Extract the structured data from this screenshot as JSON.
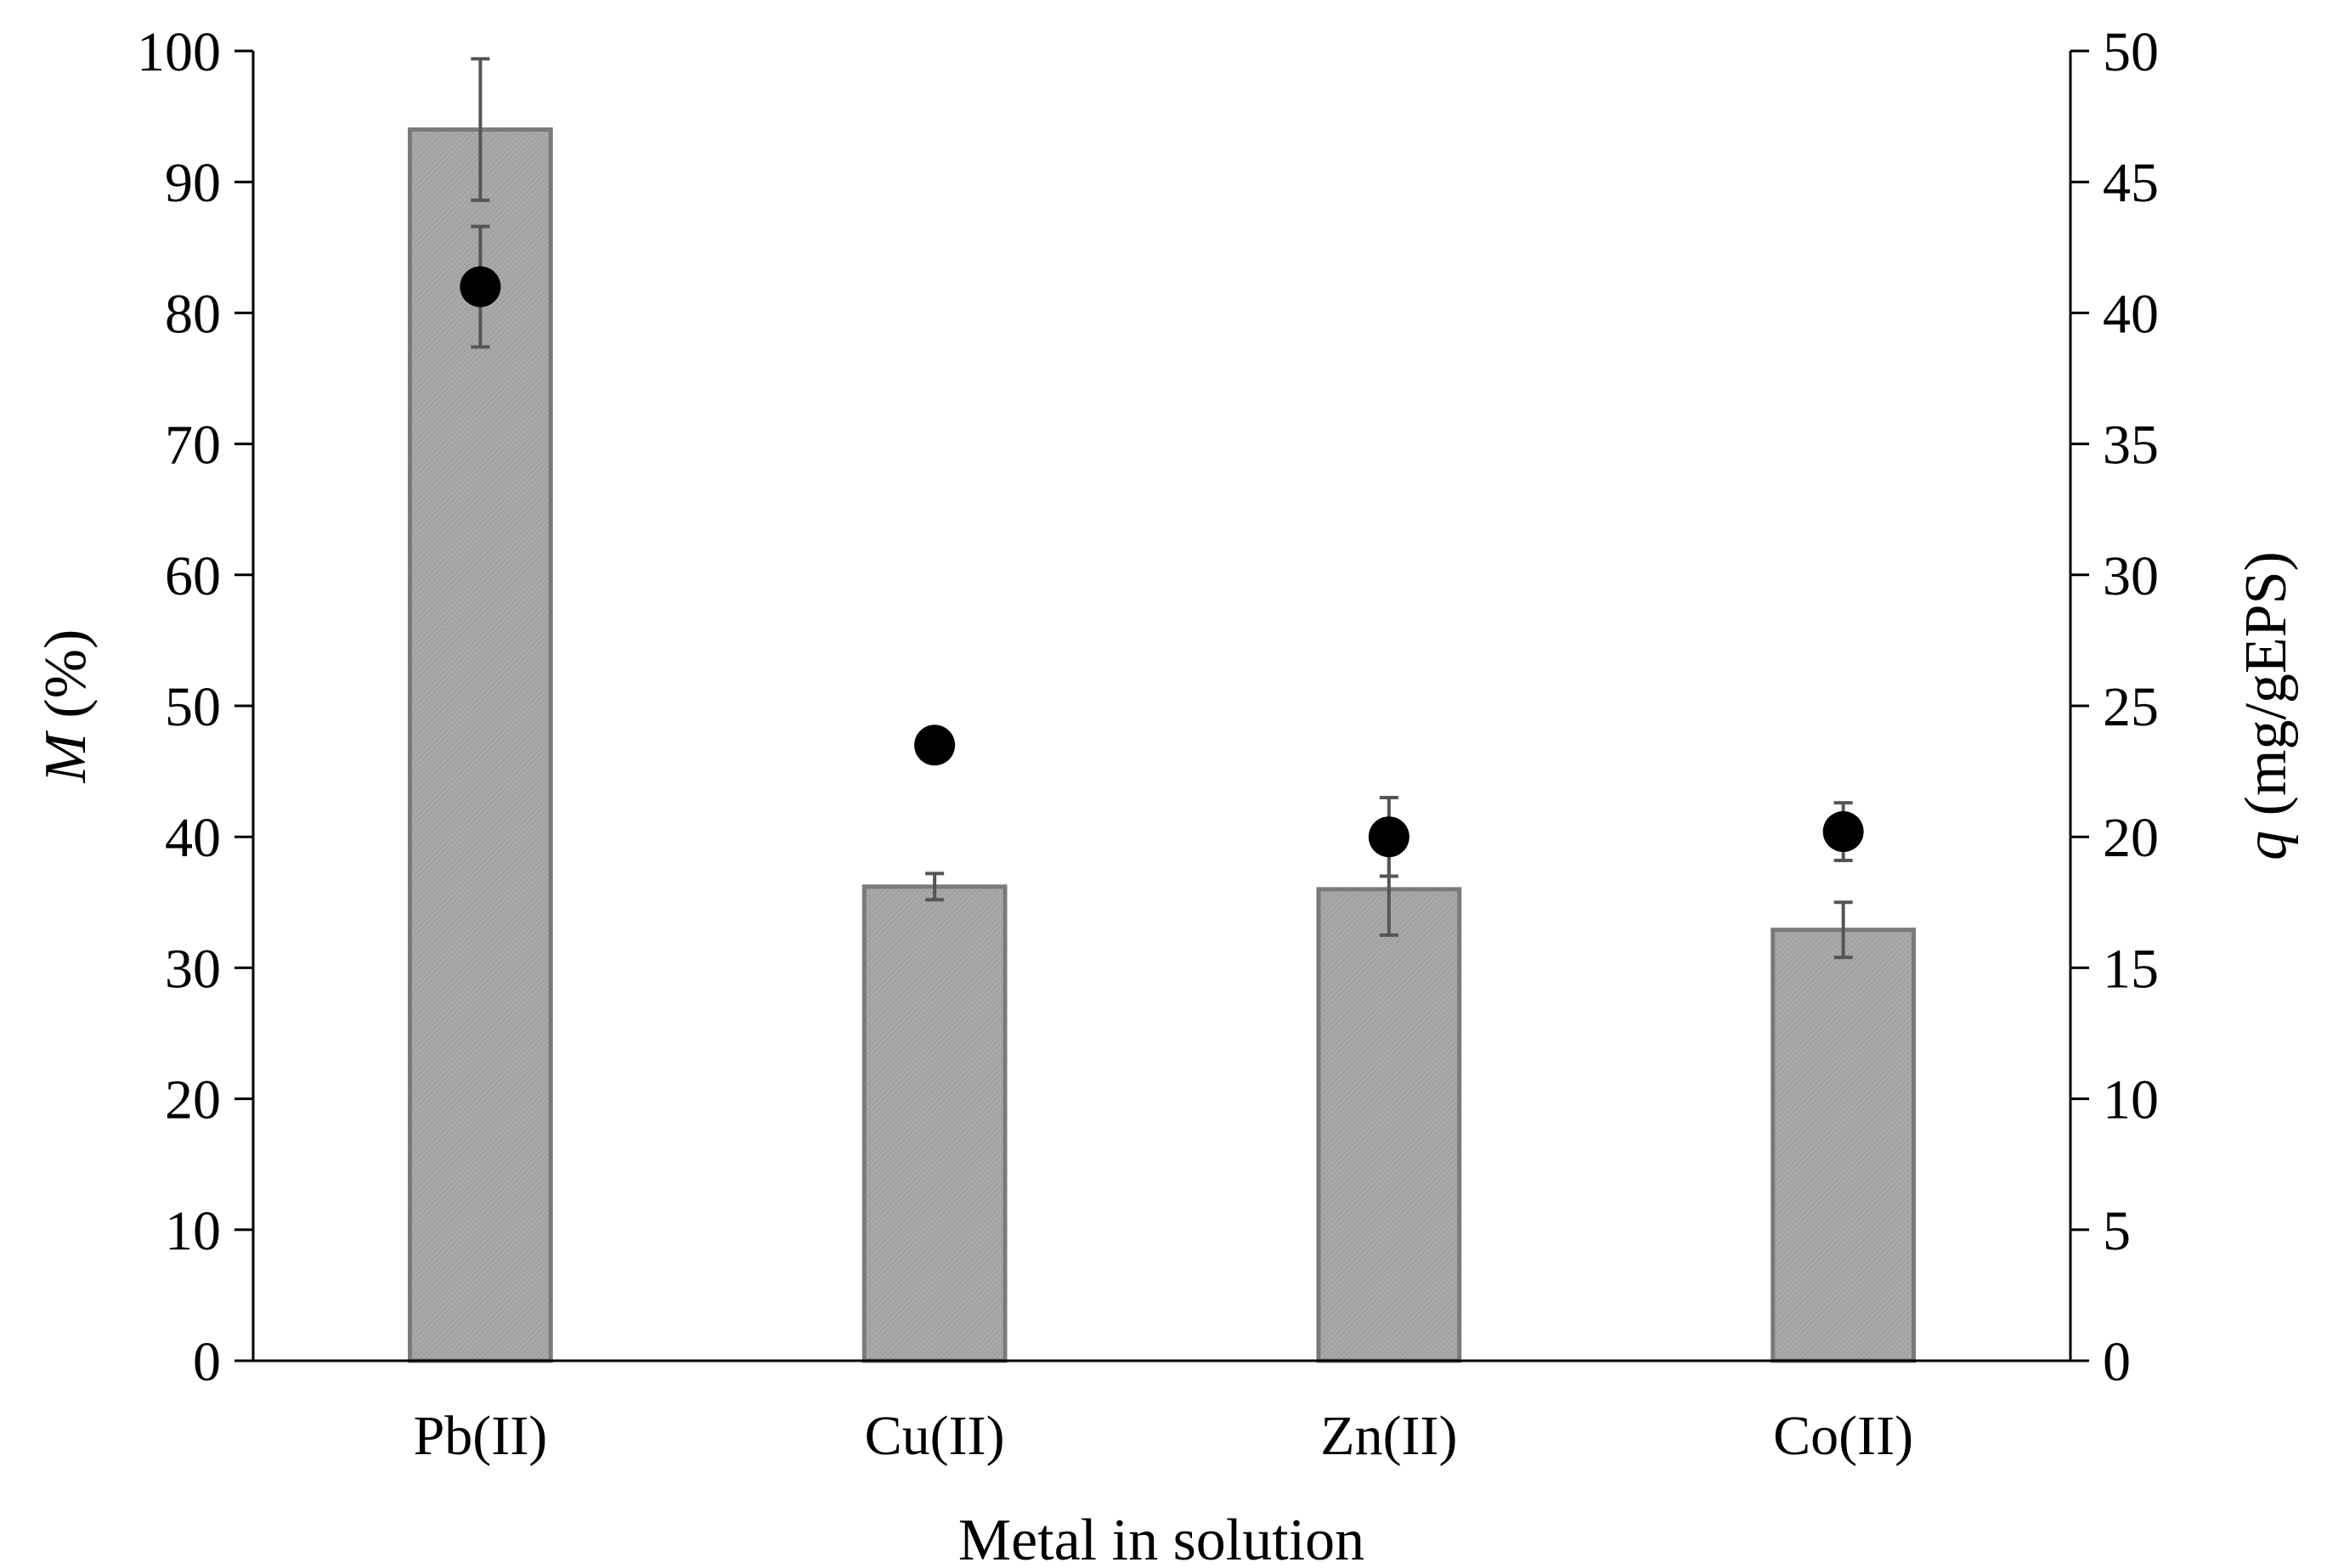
{
  "chart_data": {
    "type": "bar",
    "categories": [
      "Pb(II)",
      "Cu(II)",
      "Zn(II)",
      "Co(II)"
    ],
    "series": [
      {
        "name": "M",
        "axis": "left",
        "kind": "bar",
        "values": [
          94,
          36.2,
          36,
          32.9
        ],
        "errors": [
          5.4,
          1.0,
          3.5,
          2.1
        ]
      },
      {
        "name": "q",
        "axis": "right",
        "kind": "marker",
        "values": [
          41,
          23.5,
          20,
          20.2
        ],
        "errors": [
          2.3,
          0,
          1.5,
          1.1
        ]
      }
    ],
    "xlabel": "Metal in solution",
    "ylabel_left": {
      "symbol": "M",
      "unit": " (%)"
    },
    "ylabel_right": {
      "symbol": "q",
      "unit": " (mg/gEPS)"
    },
    "ylim_left": [
      0,
      100
    ],
    "ylim_right": [
      0,
      50
    ],
    "yticks_left": [
      "0",
      "10",
      "20",
      "30",
      "40",
      "50",
      "60",
      "70",
      "80",
      "90",
      "100"
    ],
    "yticks_right": [
      "0",
      "5",
      "10",
      "15",
      "20",
      "25",
      "30",
      "35",
      "40",
      "45",
      "50"
    ],
    "grid": false,
    "colors": {
      "bar_fill": "#a9a9a9",
      "bar_stroke": "#7a7a7a",
      "error_bar": "#555555",
      "marker": "#000000",
      "axis": "#000000"
    }
  }
}
